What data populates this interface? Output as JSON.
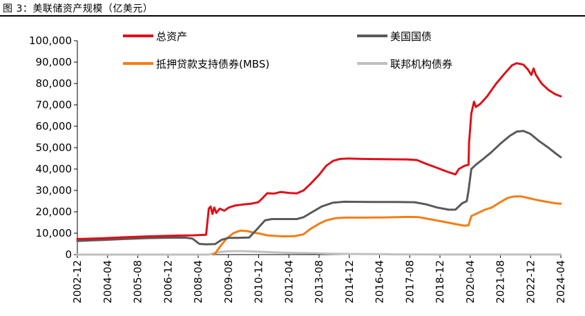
{
  "figure_title": "图 3：美联储资产规模（亿美元）",
  "chart_data": {
    "type": "line",
    "title": "",
    "xlabel": "",
    "ylabel": "",
    "ylim": [
      0,
      100000
    ],
    "y_ticks": [
      0,
      10000,
      20000,
      30000,
      40000,
      50000,
      60000,
      70000,
      80000,
      90000,
      100000
    ],
    "y_tick_labels": [
      "0",
      "10,000",
      "20,000",
      "30,000",
      "40,000",
      "50,000",
      "60,000",
      "70,000",
      "80,000",
      "90,000",
      "100,000"
    ],
    "x_range": [
      2002.92,
      2024.25
    ],
    "x_tick_labels": [
      "2002-12",
      "2004-04",
      "2005-08",
      "2006-12",
      "2008-04",
      "2009-08",
      "2010-12",
      "2012-04",
      "2013-08",
      "2014-12",
      "2016-04",
      "2017-08",
      "2018-12",
      "2020-04",
      "2021-08",
      "2022-12",
      "2024-04"
    ],
    "grid": false,
    "legend_position": "top",
    "series": [
      {
        "name": "总资产",
        "color": "#e00f19",
        "points": [
          [
            2002.92,
            7300
          ],
          [
            2004.0,
            7600
          ],
          [
            2005.0,
            8100
          ],
          [
            2006.0,
            8500
          ],
          [
            2007.0,
            8800
          ],
          [
            2008.0,
            9000
          ],
          [
            2008.6,
            9300
          ],
          [
            2008.72,
            21500
          ],
          [
            2008.8,
            22500
          ],
          [
            2008.88,
            19000
          ],
          [
            2008.96,
            22000
          ],
          [
            2009.05,
            19500
          ],
          [
            2009.2,
            21500
          ],
          [
            2009.4,
            20500
          ],
          [
            2009.6,
            22000
          ],
          [
            2009.9,
            23000
          ],
          [
            2010.3,
            23500
          ],
          [
            2010.6,
            23800
          ],
          [
            2010.9,
            24500
          ],
          [
            2011.1,
            26500
          ],
          [
            2011.3,
            28700
          ],
          [
            2011.6,
            28500
          ],
          [
            2011.9,
            29300
          ],
          [
            2012.3,
            28800
          ],
          [
            2012.6,
            28600
          ],
          [
            2012.9,
            30000
          ],
          [
            2013.2,
            33000
          ],
          [
            2013.6,
            37500
          ],
          [
            2013.9,
            41500
          ],
          [
            2014.2,
            43800
          ],
          [
            2014.5,
            44700
          ],
          [
            2014.9,
            44900
          ],
          [
            2015.5,
            44700
          ],
          [
            2016.5,
            44600
          ],
          [
            2017.5,
            44500
          ],
          [
            2017.9,
            44200
          ],
          [
            2018.3,
            42500
          ],
          [
            2018.8,
            40500
          ],
          [
            2019.3,
            38500
          ],
          [
            2019.6,
            37500
          ],
          [
            2019.75,
            40000
          ],
          [
            2020.0,
            41500
          ],
          [
            2020.18,
            42000
          ],
          [
            2020.2,
            52000
          ],
          [
            2020.3,
            66000
          ],
          [
            2020.42,
            71500
          ],
          [
            2020.5,
            69000
          ],
          [
            2020.7,
            70500
          ],
          [
            2021.0,
            74000
          ],
          [
            2021.4,
            80000
          ],
          [
            2021.8,
            85000
          ],
          [
            2022.1,
            88500
          ],
          [
            2022.3,
            89500
          ],
          [
            2022.6,
            88800
          ],
          [
            2022.8,
            86500
          ],
          [
            2022.95,
            84000
          ],
          [
            2023.05,
            87000
          ],
          [
            2023.15,
            84000
          ],
          [
            2023.4,
            80000
          ],
          [
            2023.7,
            77000
          ],
          [
            2024.0,
            75000
          ],
          [
            2024.25,
            74000
          ]
        ]
      },
      {
        "name": "美国国债",
        "color": "#595959",
        "points": [
          [
            2002.92,
            6400
          ],
          [
            2004.0,
            6800
          ],
          [
            2005.0,
            7300
          ],
          [
            2006.0,
            7700
          ],
          [
            2007.0,
            7900
          ],
          [
            2007.7,
            7900
          ],
          [
            2008.0,
            7500
          ],
          [
            2008.3,
            5000
          ],
          [
            2008.6,
            4800
          ],
          [
            2009.0,
            4900
          ],
          [
            2009.3,
            7000
          ],
          [
            2009.6,
            7800
          ],
          [
            2010.0,
            7800
          ],
          [
            2010.5,
            8000
          ],
          [
            2010.9,
            12500
          ],
          [
            2011.2,
            16000
          ],
          [
            2011.5,
            16600
          ],
          [
            2012.0,
            16600
          ],
          [
            2012.6,
            16600
          ],
          [
            2012.9,
            17500
          ],
          [
            2013.3,
            20000
          ],
          [
            2013.7,
            22500
          ],
          [
            2014.2,
            24300
          ],
          [
            2014.7,
            24700
          ],
          [
            2016.0,
            24600
          ],
          [
            2017.0,
            24600
          ],
          [
            2017.8,
            24500
          ],
          [
            2018.3,
            23500
          ],
          [
            2018.8,
            22000
          ],
          [
            2019.3,
            21000
          ],
          [
            2019.6,
            21000
          ],
          [
            2019.9,
            24000
          ],
          [
            2020.1,
            25000
          ],
          [
            2020.18,
            30000
          ],
          [
            2020.3,
            40000
          ],
          [
            2020.5,
            42000
          ],
          [
            2020.8,
            44500
          ],
          [
            2021.2,
            48000
          ],
          [
            2021.6,
            52000
          ],
          [
            2022.0,
            55500
          ],
          [
            2022.3,
            57500
          ],
          [
            2022.6,
            57800
          ],
          [
            2022.9,
            56500
          ],
          [
            2023.3,
            53000
          ],
          [
            2023.7,
            50000
          ],
          [
            2024.0,
            47500
          ],
          [
            2024.25,
            45500
          ]
        ]
      },
      {
        "name": "抵押贷款支持债券(MBS)",
        "color": "#f27e13",
        "points": [
          [
            2008.92,
            0
          ],
          [
            2009.0,
            500
          ],
          [
            2009.2,
            3500
          ],
          [
            2009.5,
            7500
          ],
          [
            2009.8,
            10000
          ],
          [
            2010.1,
            11200
          ],
          [
            2010.4,
            11000
          ],
          [
            2010.7,
            10300
          ],
          [
            2011.0,
            9700
          ],
          [
            2011.3,
            9000
          ],
          [
            2011.7,
            8700
          ],
          [
            2012.0,
            8500
          ],
          [
            2012.5,
            8600
          ],
          [
            2012.9,
            9500
          ],
          [
            2013.2,
            12000
          ],
          [
            2013.6,
            14500
          ],
          [
            2013.9,
            16000
          ],
          [
            2014.3,
            17000
          ],
          [
            2014.7,
            17300
          ],
          [
            2015.5,
            17300
          ],
          [
            2016.5,
            17400
          ],
          [
            2017.5,
            17600
          ],
          [
            2018.0,
            17500
          ],
          [
            2018.5,
            16500
          ],
          [
            2019.0,
            15500
          ],
          [
            2019.5,
            14500
          ],
          [
            2020.0,
            13500
          ],
          [
            2020.18,
            13700
          ],
          [
            2020.3,
            18000
          ],
          [
            2020.6,
            19500
          ],
          [
            2020.9,
            21000
          ],
          [
            2021.2,
            22000
          ],
          [
            2021.5,
            24000
          ],
          [
            2021.9,
            26500
          ],
          [
            2022.2,
            27200
          ],
          [
            2022.5,
            27200
          ],
          [
            2022.8,
            26500
          ],
          [
            2023.2,
            25500
          ],
          [
            2023.6,
            24700
          ],
          [
            2024.0,
            24000
          ],
          [
            2024.25,
            23800
          ]
        ]
      },
      {
        "name": "联邦机构债券",
        "color": "#bfbfbf",
        "points": [
          [
            2002.92,
            0
          ],
          [
            2008.6,
            0
          ],
          [
            2008.75,
            100
          ],
          [
            2008.92,
            600
          ],
          [
            2009.2,
            1200
          ],
          [
            2009.5,
            1500
          ],
          [
            2009.8,
            1600
          ],
          [
            2010.2,
            1600
          ],
          [
            2010.6,
            1500
          ],
          [
            2011.0,
            1300
          ],
          [
            2011.5,
            1100
          ],
          [
            2012.0,
            900
          ],
          [
            2012.5,
            800
          ],
          [
            2013.0,
            700
          ],
          [
            2013.5,
            600
          ],
          [
            2014.0,
            450
          ],
          [
            2014.5,
            350
          ],
          [
            2015.0,
            300
          ],
          [
            2016.0,
            250
          ],
          [
            2017.0,
            100
          ],
          [
            2018.0,
            50
          ],
          [
            2019.0,
            30
          ],
          [
            2020.0,
            20
          ],
          [
            2021.0,
            20
          ],
          [
            2022.0,
            20
          ],
          [
            2023.0,
            20
          ],
          [
            2024.25,
            20
          ]
        ]
      }
    ]
  }
}
